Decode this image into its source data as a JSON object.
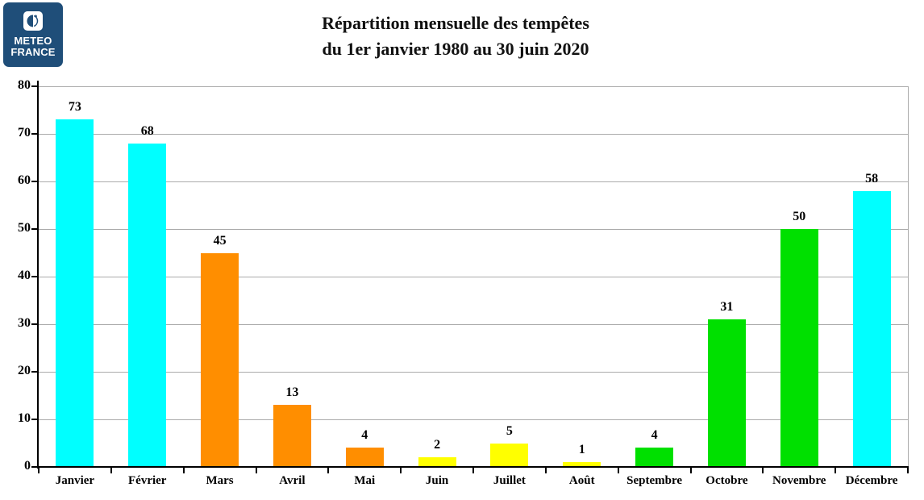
{
  "logo": {
    "brand_line1": "METEO",
    "brand_line2": "FRANCE",
    "bg_color": "#1F4E79",
    "icon": "meteo-france-sphere-icon"
  },
  "title": {
    "line1": "Répartition mensuelle des tempêtes",
    "line2": "du 1er janvier 1980 au 30 juin 2020"
  },
  "chart_data": {
    "type": "bar",
    "title": "Répartition mensuelle des tempêtes du 1er janvier 1980 au 30 juin 2020",
    "categories": [
      "Janvier",
      "Février",
      "Mars",
      "Avril",
      "Mai",
      "Juin",
      "Juillet",
      "Août",
      "Septembre",
      "Octobre",
      "Novembre",
      "Décembre"
    ],
    "values": [
      73,
      68,
      45,
      13,
      4,
      2,
      5,
      1,
      4,
      31,
      50,
      58
    ],
    "bar_colors": [
      "#00FFFF",
      "#00FFFF",
      "#FF8E00",
      "#FF8E00",
      "#FF8E00",
      "#FFFF00",
      "#FFFF00",
      "#FFFF00",
      "#00E000",
      "#00E000",
      "#00E000",
      "#00FFFF"
    ],
    "data_labels": [
      73,
      68,
      45,
      13,
      4,
      2,
      5,
      1,
      4,
      31,
      50,
      58
    ],
    "xlabel": "",
    "ylabel": "",
    "ylim": [
      0,
      80
    ],
    "yticks": [
      0,
      10,
      20,
      30,
      40,
      50,
      60,
      70,
      80
    ],
    "grid": "horizontal",
    "gridline_color": "#ABABAB",
    "axis_color": "#000000",
    "legend": "none"
  }
}
